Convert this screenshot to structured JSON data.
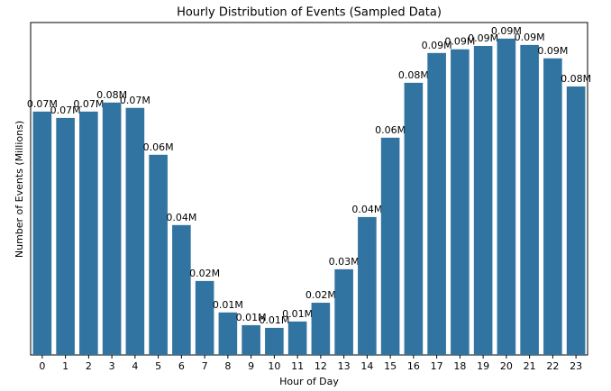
{
  "chart_data": {
    "type": "bar",
    "title": "Hourly Distribution of Events (Sampled Data)",
    "x_label": "Hour of Day",
    "y_label": "Number of Events (Millions)",
    "categories": [
      "0",
      "1",
      "2",
      "3",
      "4",
      "5",
      "6",
      "7",
      "8",
      "9",
      "10",
      "11",
      "12",
      "13",
      "14",
      "15",
      "16",
      "17",
      "18",
      "19",
      "20",
      "21",
      "22",
      "23"
    ],
    "values": [
      0.0727,
      0.0708,
      0.0727,
      0.0754,
      0.0738,
      0.0598,
      0.0388,
      0.0221,
      0.0127,
      0.0089,
      0.0081,
      0.01,
      0.0156,
      0.0256,
      0.0412,
      0.0649,
      0.0813,
      0.0902,
      0.0913,
      0.0923,
      0.0945,
      0.0926,
      0.0886,
      0.0802
    ],
    "value_labels": [
      "0.07M",
      "0.07M",
      "0.07M",
      "0.08M",
      "0.07M",
      "0.06M",
      "0.04M",
      "0.02M",
      "0.01M",
      "0.01M",
      "0.01M",
      "0.01M",
      "0.02M",
      "0.03M",
      "0.04M",
      "0.06M",
      "0.08M",
      "0.09M",
      "0.09M",
      "0.09M",
      "0.09M",
      "0.09M",
      "0.09M",
      "0.08M"
    ],
    "color": "#3274a1",
    "ylim": [
      0,
      0.0993
    ]
  }
}
